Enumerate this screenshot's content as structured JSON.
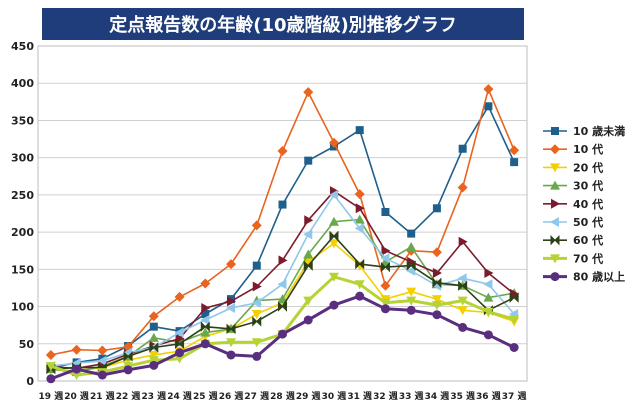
{
  "chart_data": {
    "type": "line",
    "title": "定点報告数の年齢(10歳階級)別推移グラフ",
    "xlabel": "",
    "ylabel": "",
    "ylim": [
      0,
      450
    ],
    "yticks": [
      0,
      50,
      100,
      150,
      200,
      250,
      300,
      350,
      400,
      450
    ],
    "grid": true,
    "legend_position": "right",
    "categories": [
      "19 週",
      "20 週",
      "21 週",
      "22 週",
      "23 週",
      "24 週",
      "25 週",
      "26 週",
      "27 週",
      "28 週",
      "29 週",
      "30 週",
      "31 週",
      "32 週",
      "33 週",
      "34 週",
      "35 週",
      "36 週",
      "37 週"
    ],
    "series": [
      {
        "name": "10 歳未満",
        "color": "#1f5f8b",
        "marker": "square",
        "values": [
          17,
          25,
          30,
          47,
          73,
          67,
          90,
          110,
          155,
          237,
          296,
          315,
          337,
          227,
          198,
          232,
          312,
          369,
          294
        ]
      },
      {
        "name": "10 代",
        "color": "#e8641f",
        "marker": "diamond",
        "values": [
          35,
          42,
          41,
          46,
          87,
          113,
          131,
          157,
          209,
          309,
          388,
          320,
          251,
          128,
          175,
          173,
          260,
          392,
          310
        ]
      },
      {
        "name": "20 代",
        "color": "#f4d000",
        "marker": "triangle-down",
        "values": [
          15,
          14,
          18,
          28,
          35,
          40,
          60,
          70,
          90,
          105,
          160,
          185,
          155,
          110,
          120,
          110,
          95,
          92,
          80
        ]
      },
      {
        "name": "30 代",
        "color": "#6aa84f",
        "marker": "triangle-up",
        "values": [
          16,
          12,
          20,
          33,
          58,
          52,
          65,
          70,
          108,
          110,
          170,
          214,
          217,
          160,
          180,
          130,
          128,
          112,
          118
        ]
      },
      {
        "name": "40 代",
        "color": "#7b1b2e",
        "marker": "triangle-right",
        "values": [
          19,
          17,
          23,
          36,
          47,
          57,
          98,
          107,
          127,
          162,
          216,
          255,
          232,
          175,
          160,
          145,
          187,
          145,
          117
        ]
      },
      {
        "name": "50 代",
        "color": "#8fc8ea",
        "marker": "triangle-left",
        "values": [
          20,
          24,
          27,
          38,
          45,
          65,
          82,
          98,
          105,
          130,
          197,
          250,
          205,
          165,
          148,
          128,
          138,
          130,
          90
        ]
      },
      {
        "name": "60 代",
        "color": "#2e4016",
        "marker": "bowtie",
        "values": [
          16,
          18,
          18,
          33,
          45,
          50,
          73,
          70,
          80,
          100,
          155,
          195,
          157,
          153,
          155,
          132,
          128,
          95,
          112
        ]
      },
      {
        "name": "70 代",
        "color": "#b5d334",
        "marker": "triangle-down",
        "values": [
          20,
          8,
          12,
          20,
          28,
          30,
          50,
          52,
          52,
          63,
          108,
          140,
          130,
          105,
          108,
          102,
          108,
          93,
          83
        ]
      },
      {
        "name": "80 歳以上",
        "color": "#5a2e7e",
        "marker": "circle",
        "values": [
          3,
          16,
          8,
          15,
          21,
          38,
          50,
          35,
          33,
          63,
          82,
          102,
          114,
          97,
          95,
          89,
          72,
          62,
          45
        ]
      }
    ]
  }
}
